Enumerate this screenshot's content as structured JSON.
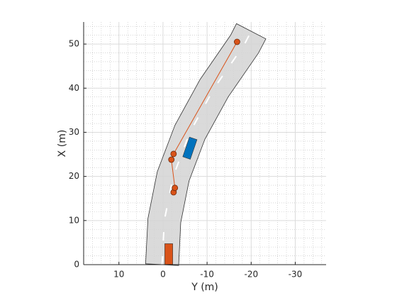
{
  "chart_data": {
    "type": "driving-scenario",
    "xlabel": "Y (m)",
    "ylabel": "X (m)",
    "xlim": [
      18,
      -37
    ],
    "ylim": [
      0,
      55
    ],
    "xticks": [
      10,
      0,
      -10,
      -20,
      -30
    ],
    "yticks": [
      0,
      10,
      20,
      30,
      40,
      50
    ],
    "grid": true,
    "minor_grid": true,
    "road": {
      "x": [
        0.2,
        -0.3,
        -2.3,
        -6.1,
        -11.6,
        -18.5,
        -20
      ],
      "y": [
        0,
        10,
        20,
        30,
        40,
        50,
        52.9
      ],
      "width": 7.5,
      "color": "#d3d3d3"
    },
    "waypoints": {
      "x": [
        -2.4,
        -2.7,
        -1.9,
        -2.4,
        -16.8
      ],
      "y": [
        16.4,
        17.4,
        23.8,
        25.1,
        50.5
      ],
      "color": "#d95319"
    },
    "vehicles": [
      {
        "color": "#d95319",
        "x": -1.3,
        "y": 2.4,
        "length": 4.7,
        "width": 1.8,
        "heading": 0
      },
      {
        "color": "#0072bd",
        "x": -6.1,
        "y": 26.4,
        "length": 4.7,
        "width": 1.8,
        "heading": 19
      }
    ]
  }
}
